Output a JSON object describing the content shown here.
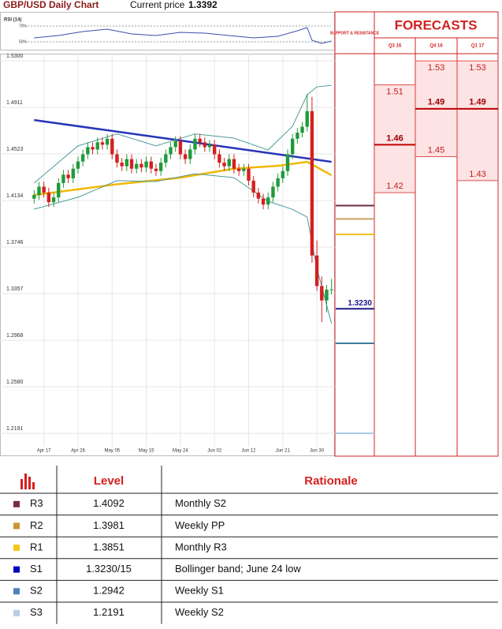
{
  "header": {
    "title": "GBP/USD Daily Chart",
    "price_label": "Current price",
    "price": 1.3392
  },
  "chart_data": {
    "type": "candlestick",
    "categories": [
      null,
      null,
      "Apr 17",
      null,
      null,
      null,
      null,
      null,
      null,
      "Apr 26",
      null,
      null,
      null,
      null,
      null,
      null,
      "May 05",
      null,
      null,
      null,
      null,
      null,
      null,
      "May 15",
      null,
      null,
      null,
      null,
      null,
      null,
      "May 24",
      null,
      null,
      null,
      null,
      null,
      null,
      "Jun 02",
      null,
      null,
      null,
      null,
      null,
      null,
      "Jun 12",
      null,
      null,
      null,
      null,
      null,
      null,
      "Jun 21",
      null,
      null,
      null,
      null,
      null,
      null,
      "Jun 30",
      null,
      null,
      null
    ],
    "open": [
      1.415,
      1.418,
      1.425,
      1.42,
      1.412,
      1.416,
      1.428,
      1.435,
      1.432,
      1.44,
      1.446,
      1.452,
      1.458,
      1.456,
      1.462,
      1.46,
      1.465,
      1.452,
      1.445,
      1.442,
      1.448,
      1.44,
      1.444,
      1.441,
      1.446,
      1.44,
      1.438,
      1.445,
      1.452,
      1.458,
      1.463,
      1.452,
      1.448,
      1.456,
      1.465,
      1.462,
      1.458,
      1.46,
      1.452,
      1.445,
      1.442,
      1.448,
      1.44,
      1.438,
      1.44,
      1.43,
      1.42,
      1.415,
      1.41,
      1.416,
      1.425,
      1.432,
      1.438,
      1.452,
      1.465,
      1.47,
      1.475,
      1.488,
      1.3675,
      1.342,
      1.33,
      1.339
    ],
    "high": [
      1.422,
      1.429,
      1.429,
      1.424,
      1.42,
      1.432,
      1.439,
      1.439,
      1.444,
      1.45,
      1.456,
      1.462,
      1.462,
      1.466,
      1.466,
      1.469,
      1.469,
      1.456,
      1.449,
      1.452,
      1.452,
      1.448,
      1.448,
      1.45,
      1.45,
      1.444,
      1.449,
      1.456,
      1.462,
      1.467,
      1.467,
      1.456,
      1.46,
      1.469,
      1.469,
      1.466,
      1.464,
      1.464,
      1.456,
      1.449,
      1.452,
      1.452,
      1.444,
      1.444,
      1.444,
      1.434,
      1.424,
      1.419,
      1.42,
      1.429,
      1.436,
      1.442,
      1.456,
      1.469,
      1.474,
      1.479,
      1.502,
      1.5,
      1.38,
      1.35,
      1.343,
      1.348
    ],
    "low": [
      1.411,
      1.414,
      1.416,
      1.408,
      1.408,
      1.412,
      1.424,
      1.428,
      1.428,
      1.436,
      1.442,
      1.448,
      1.452,
      1.452,
      1.456,
      1.456,
      1.448,
      1.441,
      1.438,
      1.438,
      1.436,
      1.436,
      1.437,
      1.437,
      1.436,
      1.434,
      1.434,
      1.441,
      1.448,
      1.454,
      1.448,
      1.444,
      1.444,
      1.452,
      1.458,
      1.454,
      1.454,
      1.448,
      1.441,
      1.438,
      1.438,
      1.436,
      1.434,
      1.434,
      1.426,
      1.416,
      1.411,
      1.406,
      1.406,
      1.412,
      1.421,
      1.428,
      1.434,
      1.448,
      1.461,
      1.466,
      1.471,
      1.3615,
      1.338,
      1.312,
      1.32,
      1.335
    ],
    "close": [
      1.418,
      1.425,
      1.42,
      1.412,
      1.416,
      1.428,
      1.435,
      1.432,
      1.44,
      1.446,
      1.452,
      1.458,
      1.456,
      1.462,
      1.46,
      1.465,
      1.452,
      1.445,
      1.442,
      1.448,
      1.44,
      1.444,
      1.441,
      1.446,
      1.44,
      1.438,
      1.445,
      1.452,
      1.458,
      1.463,
      1.452,
      1.448,
      1.456,
      1.465,
      1.462,
      1.458,
      1.46,
      1.452,
      1.445,
      1.442,
      1.448,
      1.44,
      1.438,
      1.44,
      1.43,
      1.42,
      1.415,
      1.41,
      1.416,
      1.425,
      1.432,
      1.438,
      1.452,
      1.465,
      1.47,
      1.475,
      1.488,
      1.3675,
      1.342,
      1.33,
      1.339,
      1.3392
    ],
    "up_color": "#1f9a3a",
    "down_color": "#d42020",
    "lines": [
      {
        "color": "#2634b8",
        "width": 2.5,
        "x": [
          0,
          30,
          61
        ],
        "values": [
          1.4806,
          1.4635,
          1.4457
        ]
      },
      {
        "color": "#f2b705",
        "width": 2.5,
        "x": [
          0,
          17,
          30,
          41,
          50,
          56,
          61
        ],
        "values": [
          1.418,
          1.427,
          1.4325,
          1.44,
          1.4424,
          1.4457,
          1.4345
        ]
      },
      {
        "color": "#4f9a9a",
        "width": 1,
        "x": [
          0,
          9,
          17,
          25,
          33,
          41,
          48,
          53,
          56,
          58,
          61
        ],
        "values": [
          1.428,
          1.459,
          1.469,
          1.459,
          1.469,
          1.4655,
          1.4556,
          1.4754,
          1.5017,
          1.5083,
          1.5096
        ]
      },
      {
        "color": "#4f9a9a",
        "width": 1,
        "x": [
          0,
          9,
          17,
          25,
          33,
          41,
          48,
          53,
          56,
          58,
          61
        ],
        "values": [
          1.4062,
          1.4161,
          1.43,
          1.4293,
          1.4358,
          1.4325,
          1.4128,
          1.406,
          1.3996,
          1.3568,
          1.3107
        ]
      }
    ],
    "xlim": [
      -7,
      61.7
    ],
    "ylim": [
      1.2,
      1.536
    ],
    "yticks": [
      {
        "value": 1.53,
        "label": "1.5300"
      },
      {
        "value": 1.4911,
        "label": "1.4911"
      },
      {
        "value": 1.4523,
        "label": "1.4523"
      },
      {
        "value": 1.4134,
        "label": "1.4134"
      },
      {
        "value": 1.3746,
        "label": "1.3746"
      },
      {
        "value": 1.3357,
        "label": "1.3357"
      },
      {
        "value": 1.2968,
        "label": "1.2968"
      },
      {
        "value": 1.258,
        "label": "1.2580"
      },
      {
        "value": 1.2191,
        "label": "1.2191"
      }
    ],
    "grid": true,
    "rsi": {
      "title": "RSI (14)",
      "ylim": [
        43,
        83
      ],
      "yticks": [
        {
          "value": 70,
          "label": "70%"
        },
        {
          "value": 50,
          "label": "50%"
        }
      ],
      "color": "#3a4fb0",
      "x": [
        0,
        5,
        10,
        15,
        20,
        25,
        30,
        35,
        40,
        45,
        50,
        54,
        56,
        57,
        59,
        61
      ],
      "values": [
        55,
        58,
        63,
        66,
        60,
        58,
        62,
        61,
        58,
        55,
        57,
        64,
        68,
        52,
        48,
        51
      ]
    },
    "sr_title": "SUPPORT & RESISTANCE",
    "levels": [
      {
        "value": 1.4092,
        "color": "#6e2a3c"
      },
      {
        "value": 1.3981,
        "color": "#c9a063"
      },
      {
        "value": 1.3851,
        "color": "#f0c020"
      },
      {
        "value": 1.323,
        "label": "1.3230",
        "color": "#1a1a8c"
      },
      {
        "value": 1.2942,
        "color": "#3b7c9c"
      },
      {
        "value": 1.2191,
        "color": "#a9c9e2"
      }
    ],
    "forecast_title": "FORECASTS",
    "forecasts": [
      {
        "name": "Q3 16",
        "low": 1.42,
        "mid": 1.46,
        "high": 1.51
      },
      {
        "name": "Q4 16",
        "low": 1.45,
        "mid": 1.49,
        "high": 1.53
      },
      {
        "name": "Q1 17",
        "low": 1.43,
        "mid": 1.49,
        "high": 1.53
      }
    ]
  },
  "table": {
    "columns": [
      "Level",
      "Rationale"
    ],
    "rows": [
      {
        "label": "R3",
        "level": "1.4092",
        "rationale": "Monthly S2",
        "color": "#7b2c3a"
      },
      {
        "label": "R2",
        "level": "1.3981",
        "rationale": "Weekly PP",
        "color": "#c8962e"
      },
      {
        "label": "R1",
        "level": "1.3851",
        "rationale": "Monthly R3",
        "color": "#f5c518"
      },
      {
        "label": "S1",
        "level": "1.3230/15",
        "rationale": "Bollinger band; June 24 low",
        "color": "#0000c0"
      },
      {
        "label": "S2",
        "level": "1.2942",
        "rationale": "Weekly S1",
        "color": "#4f81bd"
      },
      {
        "label": "S3",
        "level": "1.2191",
        "rationale": "Weekly S2",
        "color": "#b8cce4"
      }
    ]
  }
}
